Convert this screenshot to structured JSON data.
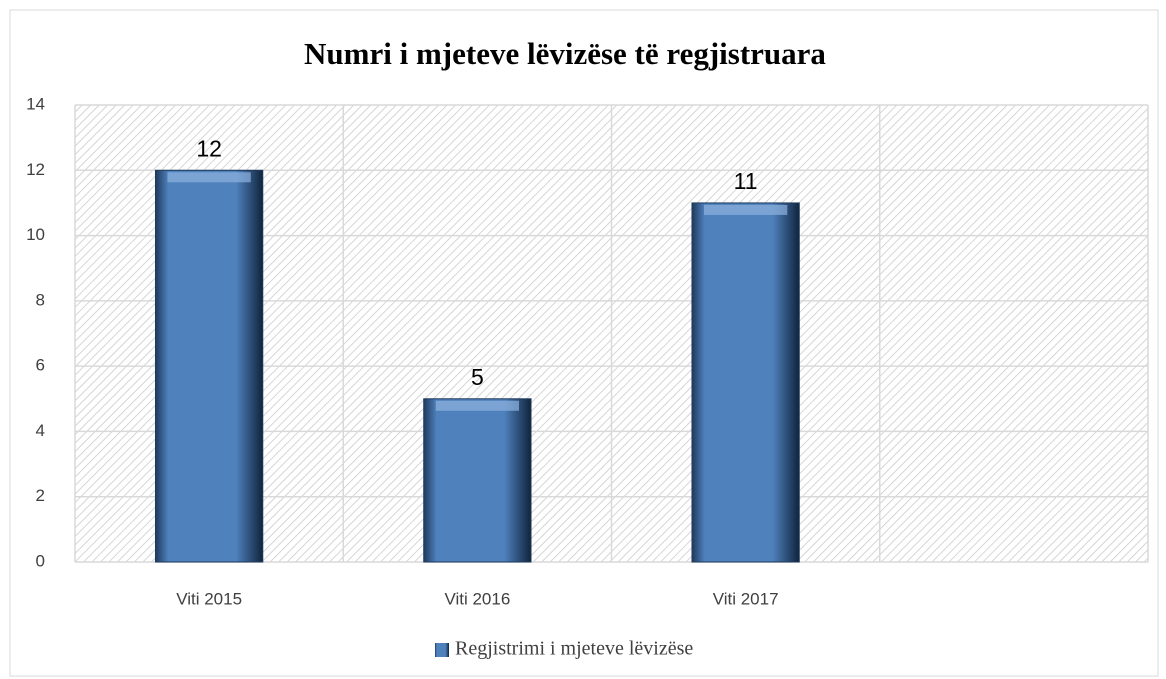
{
  "chart_data": {
    "type": "bar",
    "title": "Numri i mjeteve lëvizëse të regjistruara",
    "categories": [
      "Viti 2015",
      "Viti 2016",
      "Viti 2017",
      null
    ],
    "series": [
      {
        "name": "Regjistrimi i mjeteve lëvizëse",
        "color": "#4f81bd",
        "values": [
          12,
          5,
          11,
          null
        ]
      }
    ],
    "ylim": [
      0,
      14
    ],
    "yticks": [
      0,
      2,
      4,
      6,
      8,
      10,
      12,
      14
    ],
    "grid": true,
    "data_labels": true,
    "legend": "bottom"
  }
}
